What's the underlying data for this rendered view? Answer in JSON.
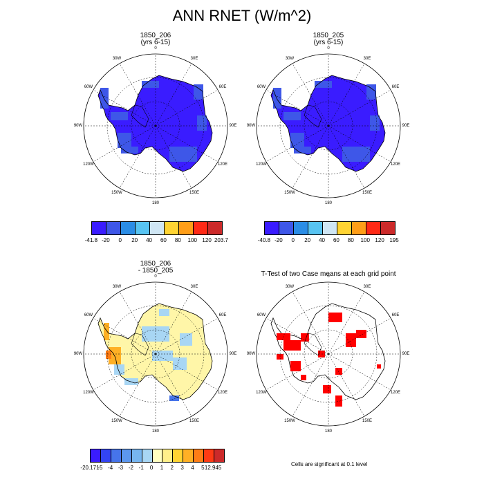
{
  "title": "ANN RNET (W/m^2)",
  "panels": [
    {
      "id": "p1",
      "title_line1": "1850_206",
      "title_line2": "(yrs 6-15)"
    },
    {
      "id": "p2",
      "title_line1": "1850_205",
      "title_line2": "(yrs 6-15)"
    },
    {
      "id": "p3",
      "title_line1": "1850_206",
      "title_line2": "- 1850_205"
    },
    {
      "id": "p4",
      "title_line1": "T-Test of two Case means at each grid point",
      "title_line2": ""
    }
  ],
  "longitude_labels": [
    "0",
    "30E",
    "60E",
    "90E",
    "120E",
    "150E",
    "180",
    "150W",
    "120W",
    "90W",
    "60W",
    "30W"
  ],
  "colorbars": {
    "cb1": {
      "labels": [
        "-41.8",
        "-20",
        "0",
        "20",
        "40",
        "60",
        "80",
        "100",
        "120",
        "203.7"
      ],
      "colors": [
        "#3a1cff",
        "#3e57e8",
        "#2b8de6",
        "#58c4f2",
        "#cfe6f4",
        "#ffd433",
        "#ff9e18",
        "#ff2a16",
        "#cc2a2a"
      ]
    },
    "cb2": {
      "labels": [
        "-40.8",
        "-20",
        "0",
        "20",
        "40",
        "60",
        "80",
        "100",
        "120",
        "195"
      ],
      "colors": [
        "#3a1cff",
        "#3e57e8",
        "#2b8de6",
        "#58c4f2",
        "#cfe6f4",
        "#ffd433",
        "#ff9e18",
        "#ff2a16",
        "#cc2a2a"
      ]
    },
    "cb3": {
      "labels": [
        "-20.171",
        "-5",
        "-4",
        "-3",
        "-2",
        "-1",
        "0",
        "1",
        "2",
        "3",
        "4",
        "5",
        "12.945"
      ],
      "colors": [
        "#3a1cff",
        "#3344f3",
        "#4674ea",
        "#5c97ee",
        "#77b6f0",
        "#a8d6f4",
        "#ffffc0",
        "#fff08a",
        "#ffd433",
        "#ffb025",
        "#ff7d16",
        "#ff3a14",
        "#cc2a2a"
      ]
    }
  },
  "significance_note": "Cells are significant at 0.1 level",
  "colors": {
    "sig": "#ff0000",
    "land_p1": "#3a1cff",
    "land_diff": "#fff6a8"
  }
}
